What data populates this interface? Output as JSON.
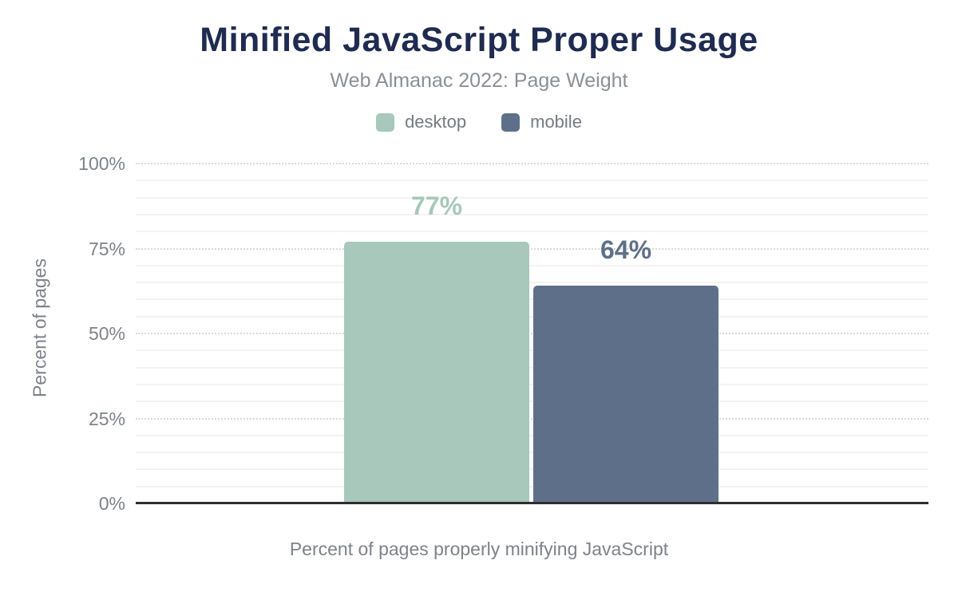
{
  "chart_data": {
    "type": "bar",
    "title": "Minified JavaScript Proper Usage",
    "subtitle": "Web Almanac 2022: Page Weight",
    "ylabel": "Percent of pages",
    "xlabel": "Percent of pages properly minifying JavaScript",
    "categories": [
      "desktop",
      "mobile"
    ],
    "series": [
      {
        "name": "desktop",
        "value": 77,
        "label": "77%",
        "color": "#a7c8ba"
      },
      {
        "name": "mobile",
        "value": 64,
        "label": "64%",
        "color": "#5e7089"
      }
    ],
    "ylim": [
      0,
      100
    ],
    "yticks": [
      {
        "value": 0,
        "label": "0%"
      },
      {
        "value": 25,
        "label": "25%"
      },
      {
        "value": 50,
        "label": "50%"
      },
      {
        "value": 75,
        "label": "75%"
      },
      {
        "value": 100,
        "label": "100%"
      }
    ],
    "minor_tick_step": 5,
    "grid": "major-dotted, minor-solid, horizontal only",
    "legend_position": "top"
  },
  "colors": {
    "title": "#1f2b50",
    "subtitle": "#8a8f99",
    "axis_text": "#7d828c",
    "legend_text": "#747a85",
    "axis_line": "#2e2e2e",
    "grid_major": "#d9d9d9",
    "grid_minor": "#f3f3f3",
    "background": "#ffffff"
  }
}
